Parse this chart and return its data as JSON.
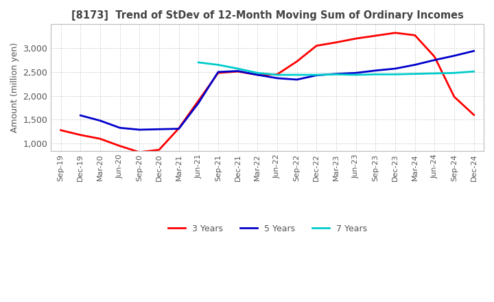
{
  "title": "[8173]  Trend of StDev of 12-Month Moving Sum of Ordinary Incomes",
  "ylabel": "Amount (million yen)",
  "ylim": [
    850,
    3500
  ],
  "yticks": [
    1000,
    1500,
    2000,
    2500,
    3000
  ],
  "background_color": "#ffffff",
  "grid_color": "#bbbbbb",
  "line_colors": {
    "3 Years": "#ff0000",
    "5 Years": "#0000cc",
    "7 Years": "#00cccc",
    "10 Years": "#007700"
  },
  "x_labels": [
    "Sep-19",
    "Dec-19",
    "Mar-20",
    "Jun-20",
    "Sep-20",
    "Dec-20",
    "Mar-21",
    "Jun-21",
    "Sep-21",
    "Dec-21",
    "Mar-22",
    "Jun-22",
    "Sep-22",
    "Dec-22",
    "Mar-23",
    "Jun-23",
    "Sep-23",
    "Dec-23",
    "Mar-24",
    "Jun-24",
    "Sep-24",
    "Dec-24"
  ],
  "series": {
    "3 Years": [
      1280,
      1180,
      1100,
      950,
      820,
      870,
      1320,
      1900,
      2480,
      2510,
      2440,
      2450,
      2720,
      3050,
      3120,
      3200,
      3260,
      3320,
      3270,
      2820,
      1980,
      1600
    ],
    "5 Years": [
      null,
      1590,
      1480,
      1330,
      1290,
      1300,
      1310,
      1850,
      2500,
      2520,
      2440,
      2370,
      2340,
      2430,
      2460,
      2480,
      2530,
      2570,
      2650,
      2750,
      2840,
      2940
    ],
    "7 Years": [
      null,
      null,
      null,
      null,
      null,
      null,
      null,
      2700,
      2650,
      2570,
      2480,
      2440,
      2440,
      2440,
      2450,
      2440,
      2450,
      2450,
      2460,
      2470,
      2480,
      2510
    ],
    "10 Years": [
      null,
      null,
      null,
      null,
      null,
      null,
      null,
      null,
      null,
      null,
      null,
      null,
      null,
      null,
      null,
      null,
      null,
      null,
      null,
      null,
      null,
      null
    ]
  }
}
